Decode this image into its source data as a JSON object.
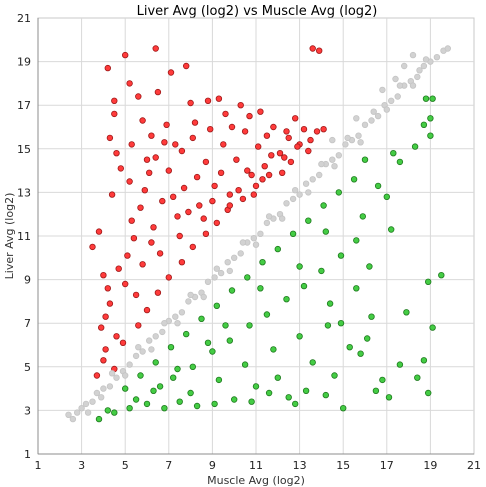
{
  "chart_data": {
    "type": "scatter",
    "title": "Liver Avg (log2) vs Muscle Avg (log2)",
    "xlabel": "Muscle Avg (log2)",
    "ylabel": "Liver Avg (log2)",
    "xlim": [
      1,
      21
    ],
    "ylim": [
      1,
      21
    ],
    "xticks": [
      "1",
      "3",
      "5",
      "7",
      "9",
      "11",
      "13",
      "15",
      "17",
      "19",
      "21"
    ],
    "yticks": [
      "1",
      "3",
      "5",
      "7",
      "9",
      "11",
      "13",
      "15",
      "17",
      "19",
      "21"
    ],
    "grid": true,
    "legend": "none",
    "series": [
      {
        "color": "#ff3b3b",
        "edge": "#a01818",
        "values": [
          [
            3.5,
            10.5
          ],
          [
            3.8,
            11.2
          ],
          [
            4.2,
            18.7
          ],
          [
            4.5,
            17.2
          ],
          [
            4.5,
            16.6
          ],
          [
            4.6,
            14.8
          ],
          [
            4.3,
            15.5
          ],
          [
            5.0,
            19.3
          ],
          [
            5.2,
            18.0
          ],
          [
            5.6,
            17.4
          ],
          [
            5.8,
            16.3
          ],
          [
            6.2,
            15.6
          ],
          [
            6.0,
            14.5
          ],
          [
            6.4,
            19.6
          ],
          [
            6.5,
            17.6
          ],
          [
            6.9,
            16.1
          ],
          [
            7.1,
            18.5
          ],
          [
            7.3,
            15.2
          ],
          [
            7.8,
            18.8
          ],
          [
            8.2,
            16.2
          ],
          [
            8.8,
            17.2
          ],
          [
            9.3,
            17.3
          ],
          [
            9.6,
            16.6
          ],
          [
            10.3,
            17.0
          ],
          [
            11.2,
            16.7
          ],
          [
            12.4,
            15.8
          ],
          [
            13.6,
            19.6
          ],
          [
            13.9,
            19.5
          ],
          [
            4.0,
            9.2
          ],
          [
            4.2,
            8.6
          ],
          [
            4.1,
            7.3
          ],
          [
            4.6,
            6.4
          ],
          [
            4.0,
            5.3
          ],
          [
            5.2,
            13.5
          ],
          [
            5.3,
            11.7
          ],
          [
            5.1,
            10.1
          ],
          [
            5.7,
            12.3
          ],
          [
            5.5,
            8.3
          ],
          [
            6.1,
            13.9
          ],
          [
            6.2,
            10.7
          ],
          [
            6.7,
            12.6
          ],
          [
            7.0,
            14.0
          ],
          [
            7.4,
            11.9
          ],
          [
            7.7,
            13.2
          ],
          [
            8.1,
            15.5
          ],
          [
            8.4,
            12.4
          ],
          [
            8.7,
            14.4
          ],
          [
            9.1,
            13.3
          ],
          [
            9.5,
            15.2
          ],
          [
            9.8,
            12.9
          ],
          [
            10.1,
            14.5
          ],
          [
            10.5,
            15.8
          ],
          [
            10.8,
            13.8
          ],
          [
            11.1,
            15.1
          ],
          [
            11.4,
            14.2
          ],
          [
            11.8,
            16.0
          ],
          [
            12.1,
            14.8
          ],
          [
            12.5,
            15.5
          ],
          [
            12.8,
            16.4
          ],
          [
            13.2,
            15.9
          ],
          [
            3.9,
            6.8
          ],
          [
            4.3,
            7.9
          ],
          [
            4.7,
            9.5
          ],
          [
            5.0,
            8.8
          ],
          [
            5.4,
            10.9
          ],
          [
            5.8,
            9.7
          ],
          [
            6.3,
            11.4
          ],
          [
            6.6,
            10.2
          ],
          [
            7.2,
            12.8
          ],
          [
            7.5,
            11.0
          ],
          [
            7.9,
            12.1
          ],
          [
            8.3,
            13.7
          ],
          [
            8.6,
            11.8
          ],
          [
            9.0,
            12.6
          ],
          [
            9.4,
            13.9
          ],
          [
            9.7,
            12.2
          ],
          [
            10.2,
            13.1
          ],
          [
            10.6,
            14.0
          ],
          [
            10.9,
            12.9
          ],
          [
            11.3,
            13.6
          ],
          [
            11.7,
            14.7
          ],
          [
            12.2,
            13.9
          ],
          [
            12.6,
            14.4
          ],
          [
            13.0,
            15.2
          ],
          [
            13.4,
            14.9
          ],
          [
            13.8,
            15.8
          ],
          [
            4.4,
            12.9
          ],
          [
            4.8,
            14.1
          ],
          [
            5.3,
            15.2
          ],
          [
            5.9,
            13.1
          ],
          [
            6.4,
            14.6
          ],
          [
            6.8,
            15.3
          ],
          [
            7.6,
            14.9
          ],
          [
            8.0,
            17.1
          ],
          [
            8.9,
            15.9
          ],
          [
            9.9,
            16.0
          ],
          [
            10.7,
            16.5
          ],
          [
            11.5,
            15.6
          ],
          [
            3.7,
            4.6
          ],
          [
            4.1,
            5.8
          ],
          [
            4.5,
            4.9
          ],
          [
            4.9,
            6.1
          ],
          [
            5.6,
            6.9
          ],
          [
            6.0,
            7.6
          ],
          [
            6.5,
            8.4
          ],
          [
            7.0,
            9.1
          ],
          [
            7.6,
            9.8
          ],
          [
            8.1,
            10.5
          ],
          [
            8.7,
            11.1
          ],
          [
            9.2,
            11.6
          ],
          [
            9.8,
            12.4
          ],
          [
            10.4,
            12.7
          ],
          [
            11.0,
            13.3
          ],
          [
            11.6,
            13.8
          ],
          [
            12.3,
            14.6
          ],
          [
            12.9,
            15.1
          ],
          [
            13.5,
            15.4
          ],
          [
            14.1,
            15.9
          ]
        ]
      },
      {
        "color": "#44cc44",
        "edge": "#1e7a1e",
        "values": [
          [
            3.8,
            2.6
          ],
          [
            4.5,
            2.9
          ],
          [
            5.2,
            3.1
          ],
          [
            6.0,
            3.3
          ],
          [
            6.8,
            3.1
          ],
          [
            7.5,
            3.4
          ],
          [
            8.3,
            3.2
          ],
          [
            9.1,
            3.3
          ],
          [
            10.0,
            3.5
          ],
          [
            10.8,
            3.4
          ],
          [
            11.6,
            3.8
          ],
          [
            12.5,
            3.6
          ],
          [
            13.3,
            3.9
          ],
          [
            14.2,
            3.7
          ],
          [
            15.0,
            3.1
          ],
          [
            16.5,
            3.9
          ],
          [
            18.9,
            3.8
          ],
          [
            18.9,
            8.9
          ],
          [
            19.5,
            9.2
          ],
          [
            17.9,
            7.5
          ],
          [
            19.1,
            6.8
          ],
          [
            18.7,
            5.3
          ],
          [
            18.4,
            4.5
          ],
          [
            17.6,
            5.1
          ],
          [
            16.8,
            4.4
          ],
          [
            17.1,
            3.6
          ],
          [
            16.1,
            6.3
          ],
          [
            15.8,
            5.6
          ],
          [
            14.9,
            7.0
          ],
          [
            14.4,
            7.9
          ],
          [
            15.6,
            8.6
          ],
          [
            16.2,
            9.6
          ],
          [
            17.2,
            11.3
          ],
          [
            17.0,
            12.8
          ],
          [
            17.6,
            14.4
          ],
          [
            18.3,
            15.1
          ],
          [
            18.7,
            16.1
          ],
          [
            19.1,
            17.3
          ],
          [
            18.8,
            17.3
          ],
          [
            19.0,
            15.6
          ],
          [
            19.0,
            16.4
          ],
          [
            16.0,
            14.5
          ],
          [
            17.3,
            14.8
          ],
          [
            5.0,
            4.0
          ],
          [
            5.7,
            4.6
          ],
          [
            6.4,
            5.2
          ],
          [
            7.1,
            5.9
          ],
          [
            7.8,
            6.5
          ],
          [
            8.5,
            7.2
          ],
          [
            9.2,
            7.8
          ],
          [
            9.9,
            8.5
          ],
          [
            10.6,
            9.1
          ],
          [
            11.3,
            9.8
          ],
          [
            12.0,
            10.4
          ],
          [
            12.7,
            11.1
          ],
          [
            13.4,
            11.7
          ],
          [
            14.1,
            12.4
          ],
          [
            14.8,
            13.0
          ],
          [
            15.5,
            13.6
          ],
          [
            6.3,
            3.9
          ],
          [
            7.2,
            4.5
          ],
          [
            8.1,
            5.0
          ],
          [
            9.0,
            5.7
          ],
          [
            9.8,
            6.2
          ],
          [
            10.7,
            6.9
          ],
          [
            11.5,
            7.4
          ],
          [
            12.4,
            8.1
          ],
          [
            13.2,
            8.7
          ],
          [
            14.0,
            9.4
          ],
          [
            14.9,
            10.1
          ],
          [
            15.6,
            10.8
          ],
          [
            8.0,
            3.8
          ],
          [
            9.3,
            4.4
          ],
          [
            10.5,
            5.1
          ],
          [
            11.8,
            5.8
          ],
          [
            13.0,
            6.4
          ],
          [
            14.3,
            6.9
          ],
          [
            12.0,
            4.5
          ],
          [
            13.6,
            5.2
          ],
          [
            15.3,
            5.9
          ],
          [
            11.0,
            4.1
          ],
          [
            12.8,
            3.3
          ],
          [
            14.6,
            4.6
          ],
          [
            16.3,
            7.3
          ],
          [
            15.9,
            11.9
          ],
          [
            16.6,
            13.3
          ],
          [
            14.2,
            11.2
          ],
          [
            13.0,
            9.6
          ],
          [
            11.2,
            8.6
          ],
          [
            9.6,
            6.9
          ],
          [
            8.8,
            6.1
          ],
          [
            7.4,
            4.9
          ],
          [
            6.6,
            4.1
          ],
          [
            5.5,
            3.5
          ],
          [
            4.2,
            3.0
          ]
        ]
      },
      {
        "color": "#d2d2d2",
        "edge": "#c4c4c4",
        "values": [
          [
            2.4,
            2.8
          ],
          [
            2.6,
            2.6
          ],
          [
            2.8,
            2.9
          ],
          [
            3.0,
            3.1
          ],
          [
            3.2,
            3.3
          ],
          [
            3.5,
            3.4
          ],
          [
            3.7,
            3.8
          ],
          [
            4.0,
            4.0
          ],
          [
            4.3,
            4.1
          ],
          [
            4.6,
            4.5
          ],
          [
            4.9,
            4.8
          ],
          [
            5.2,
            5.1
          ],
          [
            5.5,
            5.5
          ],
          [
            5.8,
            5.7
          ],
          [
            6.1,
            6.2
          ],
          [
            6.4,
            6.4
          ],
          [
            6.7,
            6.6
          ],
          [
            7.0,
            7.1
          ],
          [
            7.3,
            7.3
          ],
          [
            7.6,
            7.5
          ],
          [
            7.9,
            8.0
          ],
          [
            8.2,
            8.2
          ],
          [
            8.5,
            8.4
          ],
          [
            8.8,
            8.9
          ],
          [
            9.1,
            9.1
          ],
          [
            9.4,
            9.3
          ],
          [
            9.7,
            9.8
          ],
          [
            10.0,
            10.0
          ],
          [
            10.3,
            10.2
          ],
          [
            10.6,
            10.7
          ],
          [
            10.9,
            10.9
          ],
          [
            11.2,
            11.1
          ],
          [
            11.5,
            11.6
          ],
          [
            11.8,
            11.8
          ],
          [
            12.1,
            12.0
          ],
          [
            12.4,
            12.5
          ],
          [
            12.7,
            12.7
          ],
          [
            13.0,
            12.9
          ],
          [
            13.3,
            13.4
          ],
          [
            13.6,
            13.6
          ],
          [
            13.9,
            13.8
          ],
          [
            14.2,
            14.3
          ],
          [
            14.5,
            14.5
          ],
          [
            14.8,
            14.7
          ],
          [
            15.1,
            15.2
          ],
          [
            15.4,
            15.4
          ],
          [
            15.7,
            15.6
          ],
          [
            16.0,
            16.1
          ],
          [
            16.3,
            16.3
          ],
          [
            16.6,
            16.5
          ],
          [
            16.9,
            17.0
          ],
          [
            17.2,
            17.2
          ],
          [
            17.5,
            17.4
          ],
          [
            17.8,
            17.9
          ],
          [
            18.1,
            18.1
          ],
          [
            18.4,
            18.3
          ],
          [
            18.7,
            18.8
          ],
          [
            19.0,
            19.0
          ],
          [
            19.3,
            19.2
          ],
          [
            19.6,
            19.5
          ],
          [
            19.8,
            19.6
          ],
          [
            3.3,
            2.9
          ],
          [
            3.9,
            3.6
          ],
          [
            4.4,
            4.7
          ],
          [
            5.0,
            4.6
          ],
          [
            5.6,
            5.9
          ],
          [
            6.2,
            5.8
          ],
          [
            6.8,
            7.0
          ],
          [
            7.4,
            7.0
          ],
          [
            8.0,
            8.3
          ],
          [
            8.6,
            8.2
          ],
          [
            9.2,
            9.5
          ],
          [
            9.8,
            9.4
          ],
          [
            10.4,
            10.7
          ],
          [
            11.0,
            10.6
          ],
          [
            11.6,
            11.9
          ],
          [
            12.2,
            11.8
          ],
          [
            12.8,
            13.1
          ],
          [
            13.4,
            13.0
          ],
          [
            14.0,
            14.3
          ],
          [
            14.6,
            14.2
          ],
          [
            15.2,
            15.5
          ],
          [
            15.8,
            15.3
          ],
          [
            16.4,
            16.7
          ],
          [
            17.0,
            16.8
          ],
          [
            17.6,
            17.9
          ],
          [
            18.2,
            17.9
          ],
          [
            18.8,
            19.1
          ],
          [
            17.8,
            18.8
          ],
          [
            18.2,
            19.3
          ],
          [
            18.5,
            18.6
          ],
          [
            16.8,
            17.7
          ],
          [
            17.4,
            18.2
          ],
          [
            15.6,
            16.4
          ],
          [
            14.5,
            15.4
          ]
        ]
      }
    ]
  }
}
